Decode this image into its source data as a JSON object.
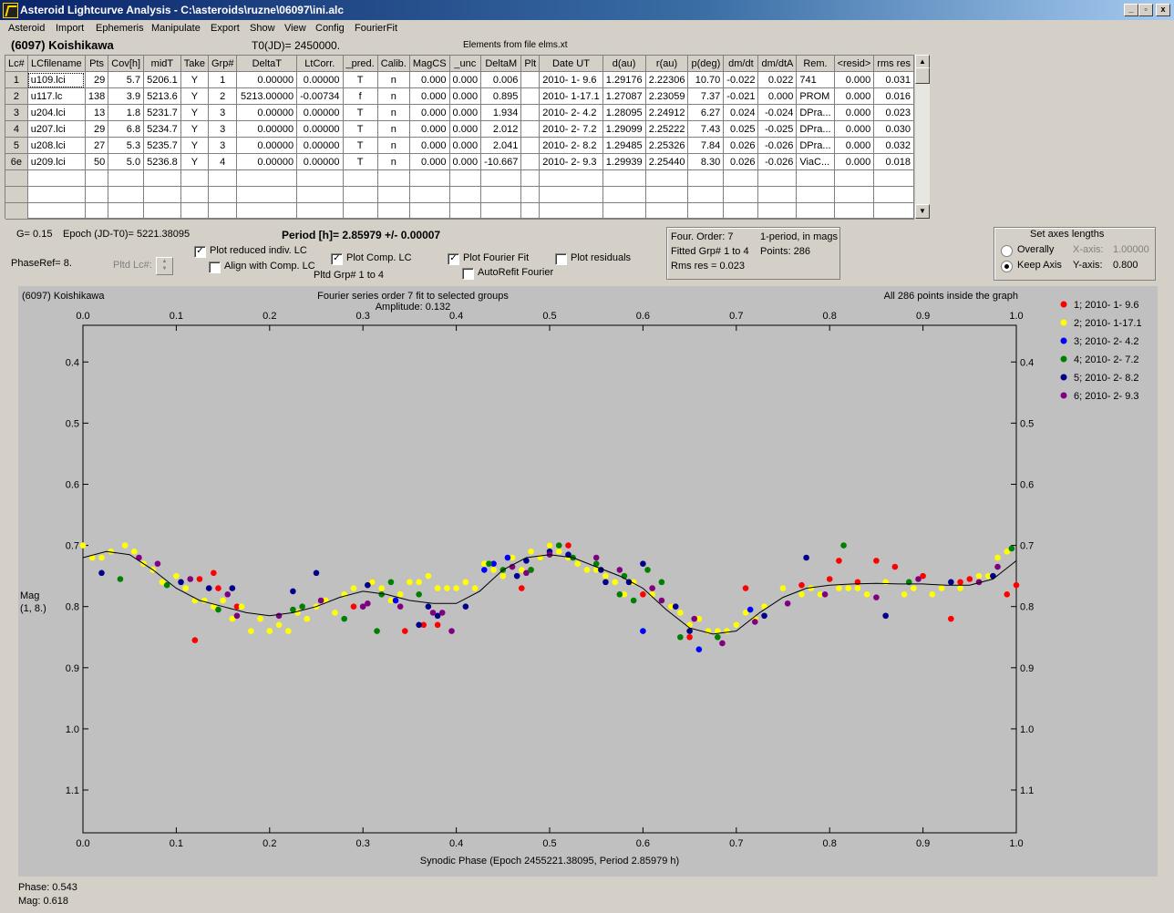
{
  "window": {
    "title": "Asteroid Lightcurve Analysis - C:\\asteroids\\ruzne\\06097\\ini.alc",
    "buttons": {
      "minimize": "_",
      "restore": "▫",
      "close": "x"
    }
  },
  "menu": [
    "Asteroid",
    "Import",
    "Ephemeris",
    "Manipulate",
    "Export",
    "Show",
    "View",
    "Config",
    "FourierFit"
  ],
  "header": {
    "asteroid": "(6097) Koishikawa",
    "t0": "T0(JD)= 2450000.",
    "elements": "Elements from file elms.xt"
  },
  "table": {
    "columns": [
      "Lc#",
      "LCfilename",
      "Pts",
      "Cov[h]",
      "midT",
      "Take",
      "Grp#",
      "DeltaT",
      "LtCorr.",
      "_pred.",
      "Calib.",
      "MagCS",
      "_unc",
      "DeltaM",
      "Plt",
      "Date UT",
      "d(au)",
      "r(au)",
      "p(deg)",
      "dm/dt",
      "dm/dtA",
      "Rem.",
      "<resid>",
      "rms res"
    ],
    "rows": [
      [
        "1",
        "u109.lci",
        "29",
        "5.7",
        "5206.1",
        "Y",
        "1",
        "0.00000",
        "0.00000",
        "T",
        "n",
        "0.000",
        "0.000",
        "0.006",
        "",
        "2010- 1- 9.6",
        "1.29176",
        "2.22306",
        "10.70",
        "-0.022",
        "0.022",
        "741",
        "0.000",
        "0.031"
      ],
      [
        "2",
        "u117.lc",
        "138",
        "3.9",
        "5213.6",
        "Y",
        "2",
        "5213.00000",
        "-0.00734",
        "f",
        "n",
        "0.000",
        "0.000",
        "0.895",
        "",
        "2010- 1-17.1",
        "1.27087",
        "2.23059",
        "7.37",
        "-0.021",
        "0.000",
        "PROM",
        "0.000",
        "0.016"
      ],
      [
        "3",
        "u204.lci",
        "13",
        "1.8",
        "5231.7",
        "Y",
        "3",
        "0.00000",
        "0.00000",
        "T",
        "n",
        "0.000",
        "0.000",
        "1.934",
        "",
        "2010- 2- 4.2",
        "1.28095",
        "2.24912",
        "6.27",
        "0.024",
        "-0.024",
        "DPra...",
        "0.000",
        "0.023"
      ],
      [
        "4",
        "u207.lci",
        "29",
        "6.8",
        "5234.7",
        "Y",
        "3",
        "0.00000",
        "0.00000",
        "T",
        "n",
        "0.000",
        "0.000",
        "2.012",
        "",
        "2010- 2- 7.2",
        "1.29099",
        "2.25222",
        "7.43",
        "0.025",
        "-0.025",
        "DPra...",
        "0.000",
        "0.030"
      ],
      [
        "5",
        "u208.lci",
        "27",
        "5.3",
        "5235.7",
        "Y",
        "3",
        "0.00000",
        "0.00000",
        "T",
        "n",
        "0.000",
        "0.000",
        "2.041",
        "",
        "2010- 2- 8.2",
        "1.29485",
        "2.25326",
        "7.84",
        "0.026",
        "-0.026",
        "DPra...",
        "0.000",
        "0.032"
      ],
      [
        "6e",
        "u209.lci",
        "50",
        "5.0",
        "5236.8",
        "Y",
        "4",
        "0.00000",
        "0.00000",
        "T",
        "n",
        "0.000",
        "0.000",
        "-10.667",
        "",
        "2010- 2- 9.3",
        "1.29939",
        "2.25440",
        "8.30",
        "0.026",
        "-0.026",
        "ViaC...",
        "0.000",
        "0.018"
      ]
    ]
  },
  "controls": {
    "g": "G= 0.15",
    "epoch": "Epoch (JD-T0)= 5221.38095",
    "period": "Period [h]= 2.85979 +/- 0.00007",
    "phaseref": "PhaseRef= 8.",
    "pltd_lc": "Pltd Lc#:",
    "plot_reduced": "Plot reduced indiv. LC",
    "align_comp": "Align with Comp. LC",
    "plot_comp": "Plot Comp. LC",
    "pltd_grp": "Pltd Grp#  1   to   4",
    "plot_fourier": "Plot Fourier Fit",
    "autorefit": "AutoRefit Fourier",
    "plot_residuals": "Plot residuals",
    "checked": {
      "plot_reduced": true,
      "align_comp": false,
      "plot_comp": true,
      "plot_fourier": true,
      "autorefit": false,
      "plot_residuals": false
    }
  },
  "fourier_info": {
    "order": "Four. Order:  7",
    "period_mode": "1-period, in mags",
    "fitted": "Fitted Grp# 1 to 4",
    "points": "Points: 286",
    "rms": "Rms res     = 0.023"
  },
  "axes_box": {
    "title": "Set axes lengths",
    "overally": "Overally",
    "keep_axis": "Keep Axis",
    "x_axis": "X-axis:",
    "x_value": "1.00000",
    "y_axis": "Y-axis:",
    "y_value": "0.800",
    "selected": "keep_axis"
  },
  "plot": {
    "name": "(6097) Koishikawa",
    "subtitle1": "Fourier series order 7 fit to selected groups",
    "subtitle2": "Amplitude: 0.132",
    "inside": "All 286 points inside the graph",
    "xlabel": "Synodic Phase (Epoch 2455221.38095, Period 2.85979 h)",
    "ylabel1": "Mag",
    "ylabel2": "(1, 8.)",
    "phase_readout": "Phase:  0.543",
    "mag_readout": "Mag:   0.618"
  },
  "chart_data": {
    "type": "scatter",
    "xlabel": "Synodic Phase (Epoch 2455221.38095, Period 2.85979 h)",
    "ylabel": "Mag (1, 8.)",
    "xlim": [
      0.0,
      1.0
    ],
    "ylim": [
      1.17,
      0.34
    ],
    "y_inverted": true,
    "x_ticks": [
      "0.0",
      "0.1",
      "0.2",
      "0.3",
      "0.4",
      "0.5",
      "0.6",
      "0.7",
      "0.8",
      "0.9",
      "1.0"
    ],
    "y_ticks": [
      "0.4",
      "0.5",
      "0.6",
      "0.7",
      "0.8",
      "0.9",
      "1.0",
      "1.1"
    ],
    "y_tick_values": [
      0.4,
      0.5,
      0.6,
      0.7,
      0.8,
      0.9,
      1.0,
      1.1
    ],
    "legend_position": "right",
    "fourier_curve": {
      "x": [
        0.0,
        0.025,
        0.05,
        0.075,
        0.1,
        0.125,
        0.15,
        0.175,
        0.2,
        0.225,
        0.25,
        0.275,
        0.3,
        0.325,
        0.35,
        0.375,
        0.4,
        0.425,
        0.45,
        0.475,
        0.5,
        0.525,
        0.55,
        0.575,
        0.6,
        0.625,
        0.65,
        0.675,
        0.7,
        0.725,
        0.75,
        0.775,
        0.8,
        0.825,
        0.85,
        0.875,
        0.9,
        0.925,
        0.95,
        0.975,
        1.0
      ],
      "y": [
        0.72,
        0.71,
        0.715,
        0.74,
        0.77,
        0.79,
        0.8,
        0.81,
        0.815,
        0.81,
        0.8,
        0.785,
        0.775,
        0.78,
        0.79,
        0.795,
        0.795,
        0.775,
        0.74,
        0.72,
        0.715,
        0.72,
        0.735,
        0.75,
        0.77,
        0.805,
        0.835,
        0.845,
        0.84,
        0.81,
        0.785,
        0.77,
        0.765,
        0.763,
        0.762,
        0.763,
        0.763,
        0.765,
        0.765,
        0.755,
        0.725
      ]
    },
    "series": [
      {
        "name": "1; 2010- 1- 9.6",
        "color": "#ff0000",
        "x": [
          0.12,
          0.125,
          0.14,
          0.145,
          0.165,
          0.29,
          0.31,
          0.345,
          0.365,
          0.38,
          0.47,
          0.48,
          0.49,
          0.5,
          0.52,
          0.6,
          0.63,
          0.65,
          0.71,
          0.77,
          0.8,
          0.81,
          0.83,
          0.85,
          0.87,
          0.9,
          0.93,
          0.94,
          0.95,
          0.99,
          1.0
        ],
        "y": [
          0.855,
          0.755,
          0.745,
          0.77,
          0.8,
          0.8,
          0.76,
          0.84,
          0.83,
          0.83,
          0.77,
          0.74,
          0.72,
          0.7,
          0.7,
          0.78,
          0.8,
          0.85,
          0.77,
          0.765,
          0.755,
          0.725,
          0.76,
          0.725,
          0.735,
          0.75,
          0.82,
          0.76,
          0.755,
          0.78,
          0.765
        ]
      },
      {
        "name": "2; 2010- 1-17.1",
        "color": "#ffff00",
        "x": [
          0.0,
          0.01,
          0.02,
          0.03,
          0.045,
          0.055,
          0.065,
          0.075,
          0.085,
          0.1,
          0.11,
          0.12,
          0.13,
          0.14,
          0.15,
          0.16,
          0.17,
          0.18,
          0.19,
          0.2,
          0.21,
          0.22,
          0.23,
          0.24,
          0.25,
          0.26,
          0.27,
          0.28,
          0.29,
          0.31,
          0.32,
          0.33,
          0.34,
          0.35,
          0.36,
          0.37,
          0.38,
          0.39,
          0.4,
          0.41,
          0.42,
          0.43,
          0.44,
          0.45,
          0.46,
          0.47,
          0.48,
          0.49,
          0.5,
          0.51,
          0.52,
          0.53,
          0.54,
          0.55,
          0.56,
          0.57,
          0.58,
          0.59,
          0.61,
          0.62,
          0.63,
          0.64,
          0.65,
          0.66,
          0.67,
          0.68,
          0.69,
          0.7,
          0.71,
          0.72,
          0.73,
          0.75,
          0.77,
          0.78,
          0.79,
          0.81,
          0.82,
          0.83,
          0.84,
          0.86,
          0.88,
          0.89,
          0.91,
          0.92,
          0.94,
          0.96,
          0.97,
          0.98,
          0.99
        ],
        "y": [
          0.7,
          0.72,
          0.72,
          0.71,
          0.7,
          0.71,
          0.73,
          0.74,
          0.76,
          0.75,
          0.77,
          0.79,
          0.79,
          0.8,
          0.79,
          0.82,
          0.8,
          0.84,
          0.82,
          0.84,
          0.83,
          0.84,
          0.81,
          0.82,
          0.8,
          0.79,
          0.81,
          0.78,
          0.77,
          0.76,
          0.77,
          0.79,
          0.78,
          0.76,
          0.76,
          0.75,
          0.77,
          0.77,
          0.77,
          0.76,
          0.77,
          0.73,
          0.74,
          0.75,
          0.72,
          0.74,
          0.71,
          0.72,
          0.7,
          0.71,
          0.72,
          0.73,
          0.74,
          0.74,
          0.75,
          0.76,
          0.78,
          0.76,
          0.78,
          0.79,
          0.8,
          0.81,
          0.83,
          0.82,
          0.84,
          0.84,
          0.84,
          0.83,
          0.81,
          0.82,
          0.8,
          0.77,
          0.78,
          0.77,
          0.78,
          0.77,
          0.77,
          0.77,
          0.78,
          0.76,
          0.78,
          0.77,
          0.78,
          0.77,
          0.77,
          0.75,
          0.75,
          0.72,
          0.71
        ]
      },
      {
        "name": "3; 2010- 2- 4.2",
        "color": "#0000ff",
        "x": [
          0.335,
          0.43,
          0.44,
          0.455,
          0.6,
          0.66,
          0.715
        ],
        "y": [
          0.79,
          0.74,
          0.73,
          0.72,
          0.84,
          0.87,
          0.805
        ]
      },
      {
        "name": "4; 2010- 2- 7.2",
        "color": "#008000",
        "x": [
          0.04,
          0.09,
          0.145,
          0.225,
          0.235,
          0.28,
          0.3,
          0.315,
          0.32,
          0.33,
          0.36,
          0.435,
          0.45,
          0.48,
          0.51,
          0.525,
          0.55,
          0.575,
          0.58,
          0.59,
          0.605,
          0.62,
          0.64,
          0.68,
          0.815,
          0.885,
          0.995
        ],
        "y": [
          0.755,
          0.765,
          0.805,
          0.805,
          0.8,
          0.82,
          0.8,
          0.84,
          0.78,
          0.76,
          0.78,
          0.73,
          0.74,
          0.74,
          0.7,
          0.72,
          0.73,
          0.78,
          0.75,
          0.79,
          0.74,
          0.76,
          0.85,
          0.85,
          0.7,
          0.76,
          0.705
        ]
      },
      {
        "name": "5; 2010- 2- 8.2",
        "color": "#00008b",
        "x": [
          0.02,
          0.105,
          0.135,
          0.16,
          0.225,
          0.25,
          0.305,
          0.36,
          0.37,
          0.38,
          0.41,
          0.465,
          0.475,
          0.5,
          0.52,
          0.555,
          0.56,
          0.585,
          0.6,
          0.635,
          0.65,
          0.73,
          0.775,
          0.86,
          0.93,
          0.975
        ],
        "y": [
          0.745,
          0.76,
          0.77,
          0.77,
          0.775,
          0.745,
          0.765,
          0.83,
          0.8,
          0.815,
          0.8,
          0.75,
          0.725,
          0.71,
          0.715,
          0.74,
          0.76,
          0.76,
          0.73,
          0.8,
          0.84,
          0.815,
          0.72,
          0.815,
          0.76,
          0.75
        ]
      },
      {
        "name": "6; 2010- 2- 9.3",
        "color": "#800080",
        "x": [
          0.06,
          0.08,
          0.115,
          0.155,
          0.165,
          0.21,
          0.255,
          0.3,
          0.305,
          0.34,
          0.375,
          0.385,
          0.395,
          0.46,
          0.475,
          0.5,
          0.55,
          0.575,
          0.61,
          0.62,
          0.655,
          0.685,
          0.72,
          0.755,
          0.795,
          0.85,
          0.895,
          0.96,
          0.98
        ],
        "y": [
          0.72,
          0.73,
          0.755,
          0.78,
          0.815,
          0.815,
          0.79,
          0.8,
          0.795,
          0.8,
          0.81,
          0.81,
          0.84,
          0.735,
          0.745,
          0.715,
          0.72,
          0.74,
          0.77,
          0.79,
          0.82,
          0.86,
          0.825,
          0.795,
          0.78,
          0.785,
          0.755,
          0.76,
          0.735
        ]
      }
    ]
  }
}
